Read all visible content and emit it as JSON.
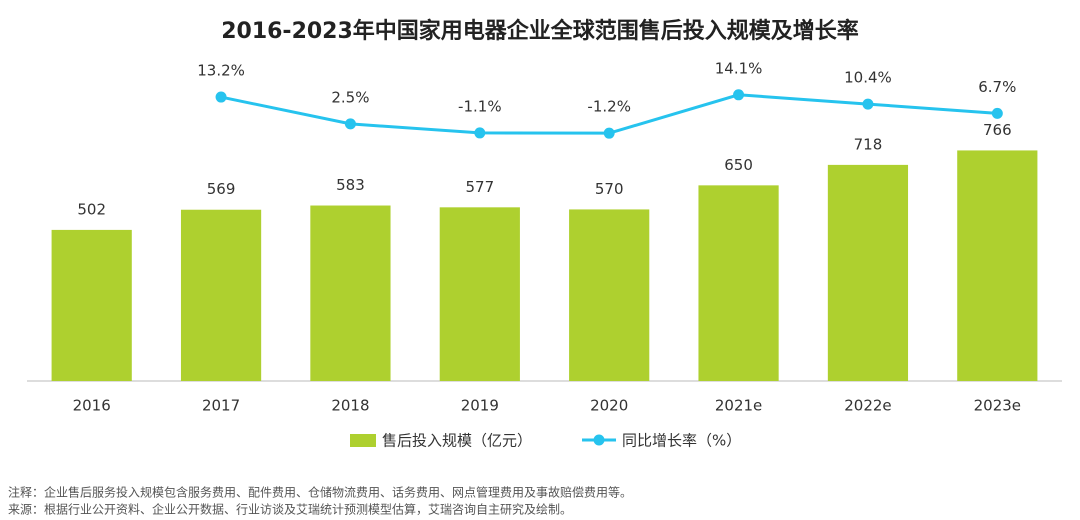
{
  "chart_data": {
    "type": "bar-line",
    "title": "2016-2023年中国家用电器企业全球范围售后投入规模及增长率",
    "categories": [
      "2016",
      "2017",
      "2018",
      "2019",
      "2020",
      "2021e",
      "2022e",
      "2023e"
    ],
    "series": [
      {
        "name": "售后投入规模（亿元）",
        "type": "bar",
        "color": "#aed02f",
        "values": [
          502,
          569,
          583,
          577,
          570,
          650,
          718,
          766
        ]
      },
      {
        "name": "同比增长率（%）",
        "type": "line",
        "axis": "y2",
        "color": "#26c3ee",
        "values": [
          null,
          13.2,
          2.5,
          -1.1,
          -1.2,
          14.1,
          10.4,
          6.7
        ],
        "value_labels": [
          null,
          "13.2%",
          "2.5%",
          "-1.1%",
          "-1.2%",
          "14.1%",
          "10.4%",
          "6.7%"
        ]
      }
    ],
    "ylim": [
      0,
      1000
    ],
    "y2lim": [
      -100,
      20
    ],
    "notes": [
      "注释：企业售后服务投入规模包含服务费用、配件费用、仓储物流费用、话务费用、网点管理费用及事故赔偿费用等。",
      "来源：根据行业公开资料、企业公开数据、行业访谈及艾瑞统计预测模型估算，艾瑞咨询自主研究及绘制。"
    ]
  }
}
